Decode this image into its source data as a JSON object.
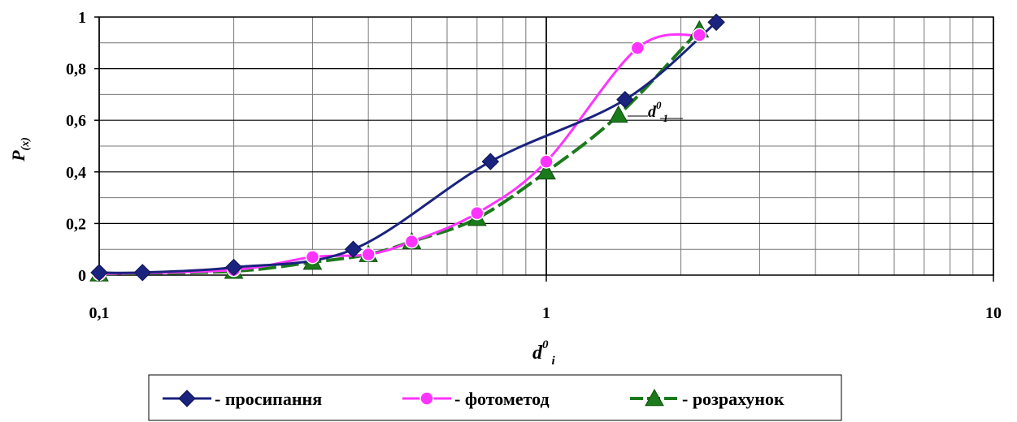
{
  "chart_data": {
    "type": "line",
    "x_scale": "log",
    "xlim": [
      0.1,
      10
    ],
    "ylim": [
      0,
      1
    ],
    "grid": true,
    "xlabel": "d",
    "xlabel_sup": "0",
    "xlabel_sub": "i",
    "ylabel": "P",
    "ylabel_sub": "(x)",
    "x_ticks": [
      {
        "value": 0.1,
        "label": "0,1"
      },
      {
        "value": 1,
        "label": "1"
      },
      {
        "value": 10,
        "label": "10"
      }
    ],
    "y_ticks": [
      {
        "value": 0,
        "label": "0"
      },
      {
        "value": 0.2,
        "label": "0,2"
      },
      {
        "value": 0.4,
        "label": "0,4"
      },
      {
        "value": 0.6,
        "label": "0,6"
      },
      {
        "value": 0.8,
        "label": "0,8"
      },
      {
        "value": 1,
        "label": "1"
      }
    ],
    "annotation": {
      "text": "d",
      "sup": "0",
      "sub": "1",
      "x": 1.5,
      "y": 0.68
    },
    "legend_position": "bottom-center",
    "series": [
      {
        "name": "- просипання",
        "color": "#1a237e",
        "marker": "diamond",
        "dashed": false,
        "x": [
          0.1,
          0.125,
          0.2,
          0.37,
          0.75,
          1.5,
          2.4
        ],
        "y": [
          0.01,
          0.01,
          0.03,
          0.1,
          0.44,
          0.68,
          0.98
        ]
      },
      {
        "name": "- фотометод",
        "color": "#ff33ff",
        "marker": "circle",
        "dashed": false,
        "x": [
          0.1,
          0.2,
          0.3,
          0.4,
          0.5,
          0.7,
          1.0,
          1.6,
          2.2
        ],
        "y": [
          0.005,
          0.02,
          0.07,
          0.08,
          0.13,
          0.24,
          0.44,
          0.88,
          0.93
        ]
      },
      {
        "name": "- розрахунок",
        "color": "#1b7a1b",
        "marker": "triangle",
        "dashed": true,
        "x": [
          0.1,
          0.2,
          0.3,
          0.4,
          0.5,
          0.7,
          1.0,
          1.45,
          2.2
        ],
        "y": [
          0.005,
          0.015,
          0.05,
          0.08,
          0.13,
          0.22,
          0.4,
          0.62,
          0.95
        ]
      }
    ]
  }
}
